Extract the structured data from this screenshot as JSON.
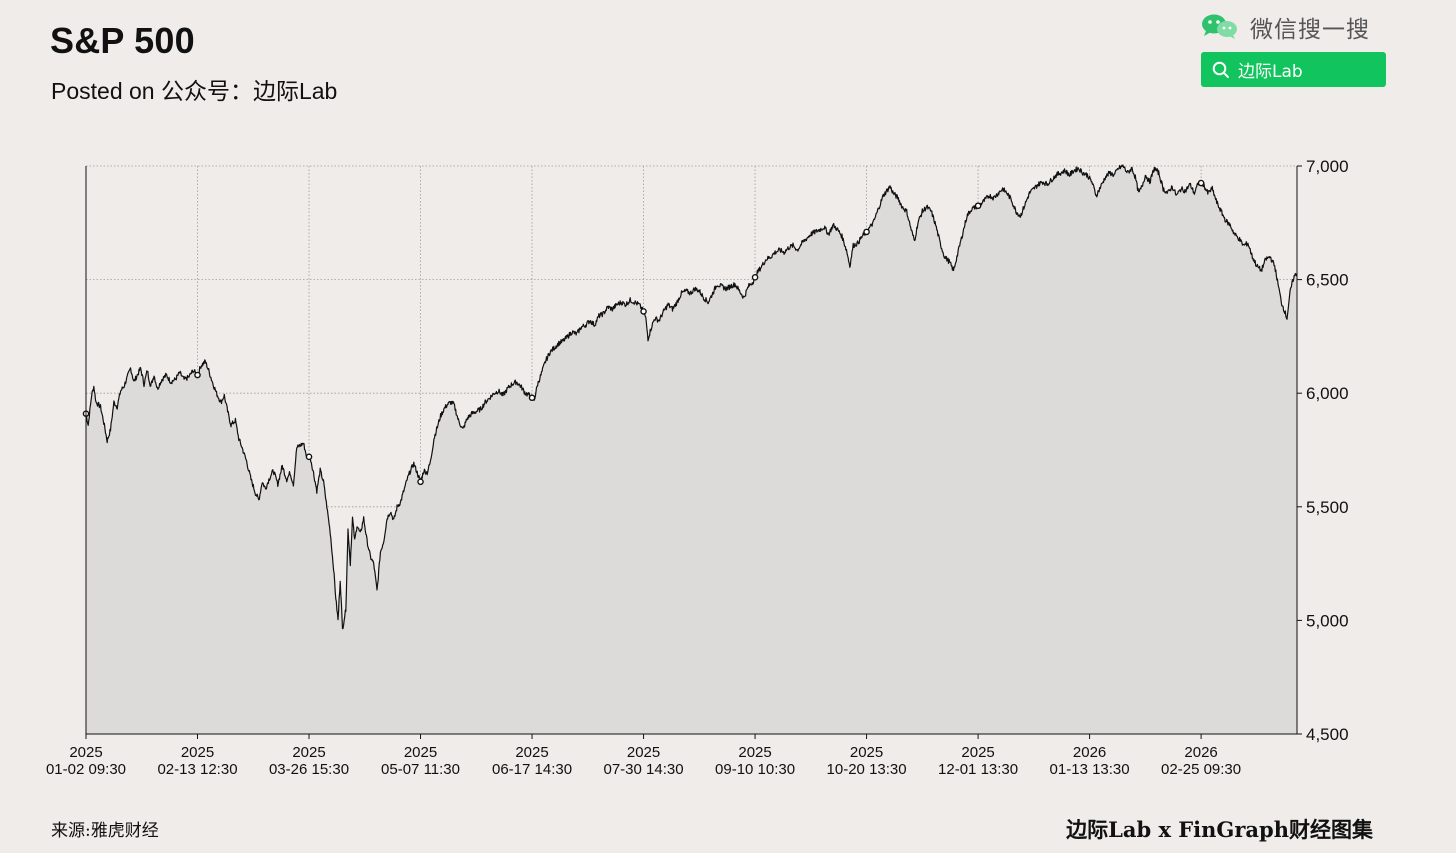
{
  "header": {
    "title": "S&P 500",
    "subtitle": "Posted on 公众号：边际Lab"
  },
  "wechat": {
    "label": "微信搜一搜",
    "search_text": "边际Lab",
    "brand_color": "#12c45e"
  },
  "footer": {
    "source": "来源:雅虎财经",
    "credit": "边际Lab x FinGraph财经图集"
  },
  "chart_data": {
    "type": "area",
    "ylim": [
      4500,
      7000
    ],
    "yticks": [
      4500,
      5000,
      5500,
      6000,
      6500,
      7000
    ],
    "ytick_labels": [
      "4,500",
      "5,000",
      "5,500",
      "6,000",
      "6,500",
      "7,000"
    ],
    "y_axis_side": "right",
    "grid": true,
    "line_color": "#111111",
    "fill_color": "#dcdbda",
    "xticks": [
      {
        "idx": 0,
        "year": "2025",
        "label": "01-02 09:30"
      },
      {
        "idx": 100,
        "year": "2025",
        "label": "02-13 12:30"
      },
      {
        "idx": 200,
        "year": "2025",
        "label": "03-26 15:30"
      },
      {
        "idx": 300,
        "year": "2025",
        "label": "05-07 11:30"
      },
      {
        "idx": 400,
        "year": "2025",
        "label": "06-17 14:30"
      },
      {
        "idx": 500,
        "year": "2025",
        "label": "07-30 14:30"
      },
      {
        "idx": 600,
        "year": "2025",
        "label": "09-10 10:30"
      },
      {
        "idx": 700,
        "year": "2025",
        "label": "10-20 13:30"
      },
      {
        "idx": 800,
        "year": "2025",
        "label": "12-01 13:30"
      },
      {
        "idx": 900,
        "year": "2026",
        "label": "01-13 13:30"
      },
      {
        "idx": 1000,
        "year": "2026",
        "label": "02-25 09:30"
      }
    ],
    "series": [
      {
        "values": [
          [
            0,
            5910
          ],
          [
            2,
            5860
          ],
          [
            5,
            5990
          ],
          [
            7,
            6030
          ],
          [
            9,
            5960
          ],
          [
            13,
            5940
          ],
          [
            16,
            5870
          ],
          [
            19,
            5790
          ],
          [
            22,
            5840
          ],
          [
            25,
            5960
          ],
          [
            28,
            5940
          ],
          [
            31,
            6010
          ],
          [
            34,
            6030
          ],
          [
            37,
            6070
          ],
          [
            40,
            6110
          ],
          [
            43,
            6050
          ],
          [
            46,
            6080
          ],
          [
            49,
            6110
          ],
          [
            52,
            6040
          ],
          [
            55,
            6100
          ],
          [
            58,
            6030
          ],
          [
            61,
            6080
          ],
          [
            64,
            6020
          ],
          [
            68,
            6060
          ],
          [
            72,
            6080
          ],
          [
            76,
            6050
          ],
          [
            80,
            6060
          ],
          [
            84,
            6090
          ],
          [
            88,
            6060
          ],
          [
            92,
            6070
          ],
          [
            96,
            6100
          ],
          [
            100,
            6080
          ],
          [
            103,
            6120
          ],
          [
            107,
            6140
          ],
          [
            110,
            6100
          ],
          [
            114,
            6040
          ],
          [
            117,
            6000
          ],
          [
            121,
            5960
          ],
          [
            124,
            5990
          ],
          [
            127,
            5920
          ],
          [
            130,
            5860
          ],
          [
            134,
            5880
          ],
          [
            137,
            5800
          ],
          [
            140,
            5760
          ],
          [
            144,
            5700
          ],
          [
            148,
            5620
          ],
          [
            152,
            5560
          ],
          [
            155,
            5530
          ],
          [
            158,
            5610
          ],
          [
            161,
            5580
          ],
          [
            164,
            5620
          ],
          [
            168,
            5660
          ],
          [
            172,
            5600
          ],
          [
            176,
            5680
          ],
          [
            180,
            5620
          ],
          [
            183,
            5650
          ],
          [
            186,
            5600
          ],
          [
            189,
            5760
          ],
          [
            192,
            5770
          ],
          [
            195,
            5780
          ],
          [
            198,
            5720
          ],
          [
            201,
            5720
          ],
          [
            204,
            5650
          ],
          [
            207,
            5570
          ],
          [
            210,
            5660
          ],
          [
            213,
            5610
          ],
          [
            216,
            5500
          ],
          [
            219,
            5390
          ],
          [
            222,
            5230
          ],
          [
            224,
            5100
          ],
          [
            226,
            5000
          ],
          [
            228,
            5180
          ],
          [
            230,
            4960
          ],
          [
            233,
            5050
          ],
          [
            235,
            5400
          ],
          [
            237,
            5250
          ],
          [
            239,
            5450
          ],
          [
            241,
            5350
          ],
          [
            243,
            5420
          ],
          [
            246,
            5380
          ],
          [
            249,
            5450
          ],
          [
            252,
            5350
          ],
          [
            255,
            5280
          ],
          [
            258,
            5250
          ],
          [
            261,
            5130
          ],
          [
            264,
            5300
          ],
          [
            267,
            5350
          ],
          [
            270,
            5450
          ],
          [
            273,
            5480
          ],
          [
            276,
            5440
          ],
          [
            279,
            5500
          ],
          [
            282,
            5520
          ],
          [
            285,
            5570
          ],
          [
            288,
            5620
          ],
          [
            291,
            5660
          ],
          [
            294,
            5690
          ],
          [
            297,
            5650
          ],
          [
            300,
            5610
          ],
          [
            303,
            5660
          ],
          [
            306,
            5650
          ],
          [
            309,
            5700
          ],
          [
            312,
            5800
          ],
          [
            315,
            5850
          ],
          [
            318,
            5900
          ],
          [
            321,
            5930
          ],
          [
            324,
            5950
          ],
          [
            327,
            5960
          ],
          [
            330,
            5950
          ],
          [
            334,
            5880
          ],
          [
            338,
            5840
          ],
          [
            342,
            5890
          ],
          [
            346,
            5910
          ],
          [
            350,
            5920
          ],
          [
            354,
            5930
          ],
          [
            358,
            5960
          ],
          [
            362,
            5980
          ],
          [
            366,
            6000
          ],
          [
            370,
            6010
          ],
          [
            374,
            5990
          ],
          [
            378,
            6020
          ],
          [
            382,
            6040
          ],
          [
            386,
            6050
          ],
          [
            390,
            6030
          ],
          [
            394,
            6000
          ],
          [
            398,
            5990
          ],
          [
            402,
            5970
          ],
          [
            405,
            6040
          ],
          [
            408,
            6080
          ],
          [
            412,
            6140
          ],
          [
            416,
            6180
          ],
          [
            420,
            6200
          ],
          [
            424,
            6220
          ],
          [
            428,
            6230
          ],
          [
            432,
            6250
          ],
          [
            436,
            6270
          ],
          [
            440,
            6260
          ],
          [
            444,
            6290
          ],
          [
            448,
            6300
          ],
          [
            452,
            6320
          ],
          [
            456,
            6300
          ],
          [
            460,
            6340
          ],
          [
            464,
            6350
          ],
          [
            468,
            6380
          ],
          [
            472,
            6370
          ],
          [
            476,
            6390
          ],
          [
            480,
            6400
          ],
          [
            484,
            6390
          ],
          [
            488,
            6410
          ],
          [
            492,
            6400
          ],
          [
            496,
            6390
          ],
          [
            500,
            6360
          ],
          [
            502,
            6330
          ],
          [
            504,
            6240
          ],
          [
            507,
            6290
          ],
          [
            510,
            6330
          ],
          [
            514,
            6320
          ],
          [
            518,
            6360
          ],
          [
            522,
            6390
          ],
          [
            526,
            6370
          ],
          [
            530,
            6400
          ],
          [
            534,
            6440
          ],
          [
            538,
            6450
          ],
          [
            542,
            6440
          ],
          [
            546,
            6460
          ],
          [
            550,
            6450
          ],
          [
            554,
            6420
          ],
          [
            558,
            6400
          ],
          [
            562,
            6440
          ],
          [
            566,
            6480
          ],
          [
            570,
            6470
          ],
          [
            574,
            6460
          ],
          [
            578,
            6470
          ],
          [
            582,
            6480
          ],
          [
            586,
            6450
          ],
          [
            590,
            6420
          ],
          [
            594,
            6470
          ],
          [
            598,
            6490
          ],
          [
            602,
            6530
          ],
          [
            606,
            6560
          ],
          [
            610,
            6590
          ],
          [
            614,
            6600
          ],
          [
            618,
            6620
          ],
          [
            622,
            6630
          ],
          [
            626,
            6620
          ],
          [
            630,
            6640
          ],
          [
            634,
            6650
          ],
          [
            638,
            6630
          ],
          [
            642,
            6660
          ],
          [
            646,
            6680
          ],
          [
            650,
            6700
          ],
          [
            654,
            6710
          ],
          [
            658,
            6720
          ],
          [
            662,
            6730
          ],
          [
            666,
            6700
          ],
          [
            670,
            6740
          ],
          [
            674,
            6720
          ],
          [
            678,
            6690
          ],
          [
            682,
            6630
          ],
          [
            685,
            6560
          ],
          [
            688,
            6650
          ],
          [
            692,
            6660
          ],
          [
            696,
            6690
          ],
          [
            700,
            6710
          ],
          [
            703,
            6730
          ],
          [
            706,
            6750
          ],
          [
            709,
            6790
          ],
          [
            712,
            6830
          ],
          [
            715,
            6870
          ],
          [
            718,
            6890
          ],
          [
            721,
            6910
          ],
          [
            724,
            6880
          ],
          [
            728,
            6860
          ],
          [
            732,
            6820
          ],
          [
            736,
            6800
          ],
          [
            740,
            6720
          ],
          [
            743,
            6670
          ],
          [
            746,
            6750
          ],
          [
            750,
            6800
          ],
          [
            754,
            6820
          ],
          [
            758,
            6800
          ],
          [
            762,
            6740
          ],
          [
            766,
            6660
          ],
          [
            770,
            6600
          ],
          [
            774,
            6580
          ],
          [
            778,
            6540
          ],
          [
            782,
            6620
          ],
          [
            786,
            6700
          ],
          [
            790,
            6780
          ],
          [
            794,
            6810
          ],
          [
            798,
            6820
          ],
          [
            802,
            6830
          ],
          [
            806,
            6850
          ],
          [
            810,
            6870
          ],
          [
            814,
            6860
          ],
          [
            818,
            6880
          ],
          [
            822,
            6900
          ],
          [
            826,
            6880
          ],
          [
            830,
            6850
          ],
          [
            834,
            6800
          ],
          [
            838,
            6780
          ],
          [
            842,
            6830
          ],
          [
            846,
            6880
          ],
          [
            850,
            6900
          ],
          [
            854,
            6920
          ],
          [
            858,
            6930
          ],
          [
            862,
            6920
          ],
          [
            866,
            6940
          ],
          [
            870,
            6960
          ],
          [
            874,
            6970
          ],
          [
            878,
            6980
          ],
          [
            882,
            6960
          ],
          [
            886,
            6980
          ],
          [
            890,
            6990
          ],
          [
            894,
            6970
          ],
          [
            898,
            6960
          ],
          [
            902,
            6930
          ],
          [
            906,
            6870
          ],
          [
            910,
            6910
          ],
          [
            914,
            6950
          ],
          [
            918,
            6970
          ],
          [
            922,
            6960
          ],
          [
            926,
            6990
          ],
          [
            930,
            7000
          ],
          [
            934,
            6970
          ],
          [
            938,
            6990
          ],
          [
            941,
            6950
          ],
          [
            944,
            6880
          ],
          [
            947,
            6910
          ],
          [
            950,
            6960
          ],
          [
            954,
            6930
          ],
          [
            958,
            6990
          ],
          [
            962,
            6970
          ],
          [
            966,
            6900
          ],
          [
            970,
            6880
          ],
          [
            974,
            6910
          ],
          [
            978,
            6870
          ],
          [
            982,
            6900
          ],
          [
            986,
            6890
          ],
          [
            990,
            6920
          ],
          [
            994,
            6880
          ],
          [
            998,
            6930
          ],
          [
            1002,
            6920
          ],
          [
            1006,
            6880
          ],
          [
            1010,
            6900
          ],
          [
            1014,
            6840
          ],
          [
            1018,
            6800
          ],
          [
            1022,
            6760
          ],
          [
            1026,
            6740
          ],
          [
            1030,
            6700
          ],
          [
            1034,
            6680
          ],
          [
            1038,
            6650
          ],
          [
            1042,
            6660
          ],
          [
            1046,
            6600
          ],
          [
            1050,
            6560
          ],
          [
            1054,
            6540
          ],
          [
            1058,
            6590
          ],
          [
            1062,
            6600
          ],
          [
            1066,
            6560
          ],
          [
            1069,
            6480
          ],
          [
            1072,
            6400
          ],
          [
            1075,
            6360
          ],
          [
            1077,
            6330
          ],
          [
            1080,
            6450
          ],
          [
            1083,
            6510
          ],
          [
            1086,
            6530
          ]
        ]
      }
    ],
    "markers": [
      0,
      100,
      200,
      300,
      400,
      500,
      600,
      700,
      800,
      1000
    ]
  }
}
